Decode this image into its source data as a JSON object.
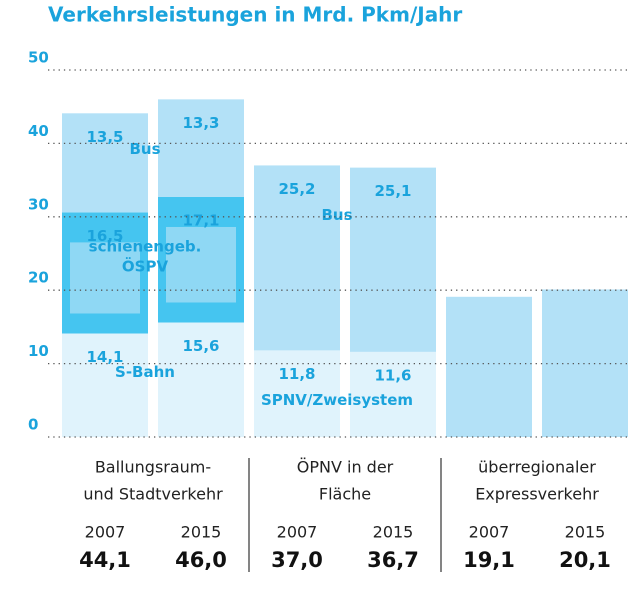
{
  "chart_data": {
    "type": "bar",
    "stacked": true,
    "title": "Verkehrsleistungen in Mrd. Pkm/Jahr",
    "ylim": [
      0,
      50
    ],
    "yticks": [
      0,
      10,
      20,
      30,
      40,
      50
    ],
    "grid": true,
    "groups": [
      {
        "label": [
          "Ballungsraum-",
          "und Stadtverkehr"
        ],
        "segment_names": [
          [
            "S-Bahn"
          ],
          [
            "schienengeb.",
            "ÖSPV"
          ],
          [
            "Bus"
          ]
        ],
        "bars": [
          {
            "year": "2007",
            "total": 44.1,
            "total_label": "44,1",
            "segments": [
              {
                "value": 14.1,
                "label": "14,1",
                "color": "#e0f3fc"
              },
              {
                "value": 16.5,
                "label": "16,5",
                "color": "#45c5f0"
              },
              {
                "value": 13.5,
                "label": "13,5",
                "color": "#b3e1f7"
              }
            ]
          },
          {
            "year": "2015",
            "total": 46.0,
            "total_label": "46,0",
            "segments": [
              {
                "value": 15.6,
                "label": "15,6",
                "color": "#e0f3fc"
              },
              {
                "value": 17.1,
                "label": "17,1",
                "color": "#45c5f0"
              },
              {
                "value": 13.3,
                "label": "13,3",
                "color": "#b3e1f7"
              }
            ]
          }
        ]
      },
      {
        "label": [
          "ÖPNV in der",
          "Fläche"
        ],
        "segment_names": [
          [
            "SPNV/Zweisystem"
          ],
          [
            "Bus"
          ]
        ],
        "bars": [
          {
            "year": "2007",
            "total": 37.0,
            "total_label": "37,0",
            "segments": [
              {
                "value": 11.8,
                "label": "11,8",
                "color": "#e0f3fc"
              },
              {
                "value": 25.2,
                "label": "25,2",
                "color": "#b3e1f7"
              }
            ]
          },
          {
            "year": "2015",
            "total": 36.7,
            "total_label": "36,7",
            "segments": [
              {
                "value": 11.6,
                "label": "11,6",
                "color": "#e0f3fc"
              },
              {
                "value": 25.1,
                "label": "25,1",
                "color": "#b3e1f7"
              }
            ]
          }
        ]
      },
      {
        "label": [
          "überregionaler",
          "Expressverkehr"
        ],
        "bars": [
          {
            "year": "2007",
            "total": 19.1,
            "total_label": "19,1",
            "segments": [
              {
                "value": 19.1,
                "color": "#b3e1f7"
              }
            ]
          },
          {
            "year": "2015",
            "total": 20.1,
            "total_label": "20,1",
            "segments": [
              {
                "value": 20.1,
                "color": "#b3e1f7"
              }
            ]
          }
        ]
      }
    ]
  }
}
